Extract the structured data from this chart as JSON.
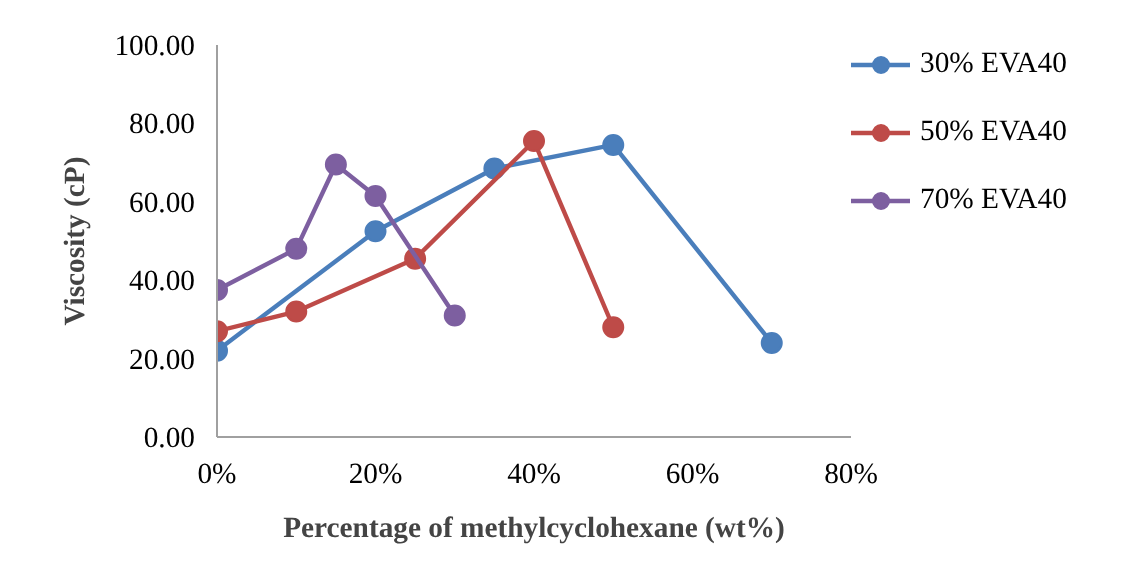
{
  "chart_data": {
    "type": "line",
    "xlabel": "Percentage of methylcyclohexane (wt%)",
    "ylabel": "Viscosity (cP)",
    "xlim": [
      0,
      80
    ],
    "xticks": [
      {
        "value": 0,
        "label": "0%"
      },
      {
        "value": 20,
        "label": "20%"
      },
      {
        "value": 40,
        "label": "40%"
      },
      {
        "value": 60,
        "label": "60%"
      },
      {
        "value": 80,
        "label": "80%"
      }
    ],
    "ylim": [
      0,
      100
    ],
    "yticks": [
      {
        "value": 0,
        "label": "0.00"
      },
      {
        "value": 20,
        "label": "20.00"
      },
      {
        "value": 40,
        "label": "40.00"
      },
      {
        "value": 60,
        "label": "60.00"
      },
      {
        "value": 80,
        "label": "80.00"
      },
      {
        "value": 100,
        "label": "100.00"
      }
    ],
    "grid": false,
    "legend": "right",
    "marker": "circle",
    "line_style": "solid",
    "series": [
      {
        "name": "30% EVA40",
        "color": "#4a7ebb",
        "x": [
          0,
          20,
          35,
          50,
          70
        ],
        "values": [
          22,
          52.5,
          68.5,
          74.5,
          24
        ]
      },
      {
        "name": "50% EVA40",
        "color": "#be4b48",
        "x": [
          0,
          10,
          25,
          40,
          50
        ],
        "values": [
          27,
          32,
          45.5,
          75.5,
          28
        ]
      },
      {
        "name": "70% EVA40",
        "color": "#7d5fa0",
        "x": [
          0,
          10,
          15,
          20,
          30
        ],
        "values": [
          37.5,
          48,
          69.5,
          61.5,
          31
        ]
      }
    ]
  }
}
